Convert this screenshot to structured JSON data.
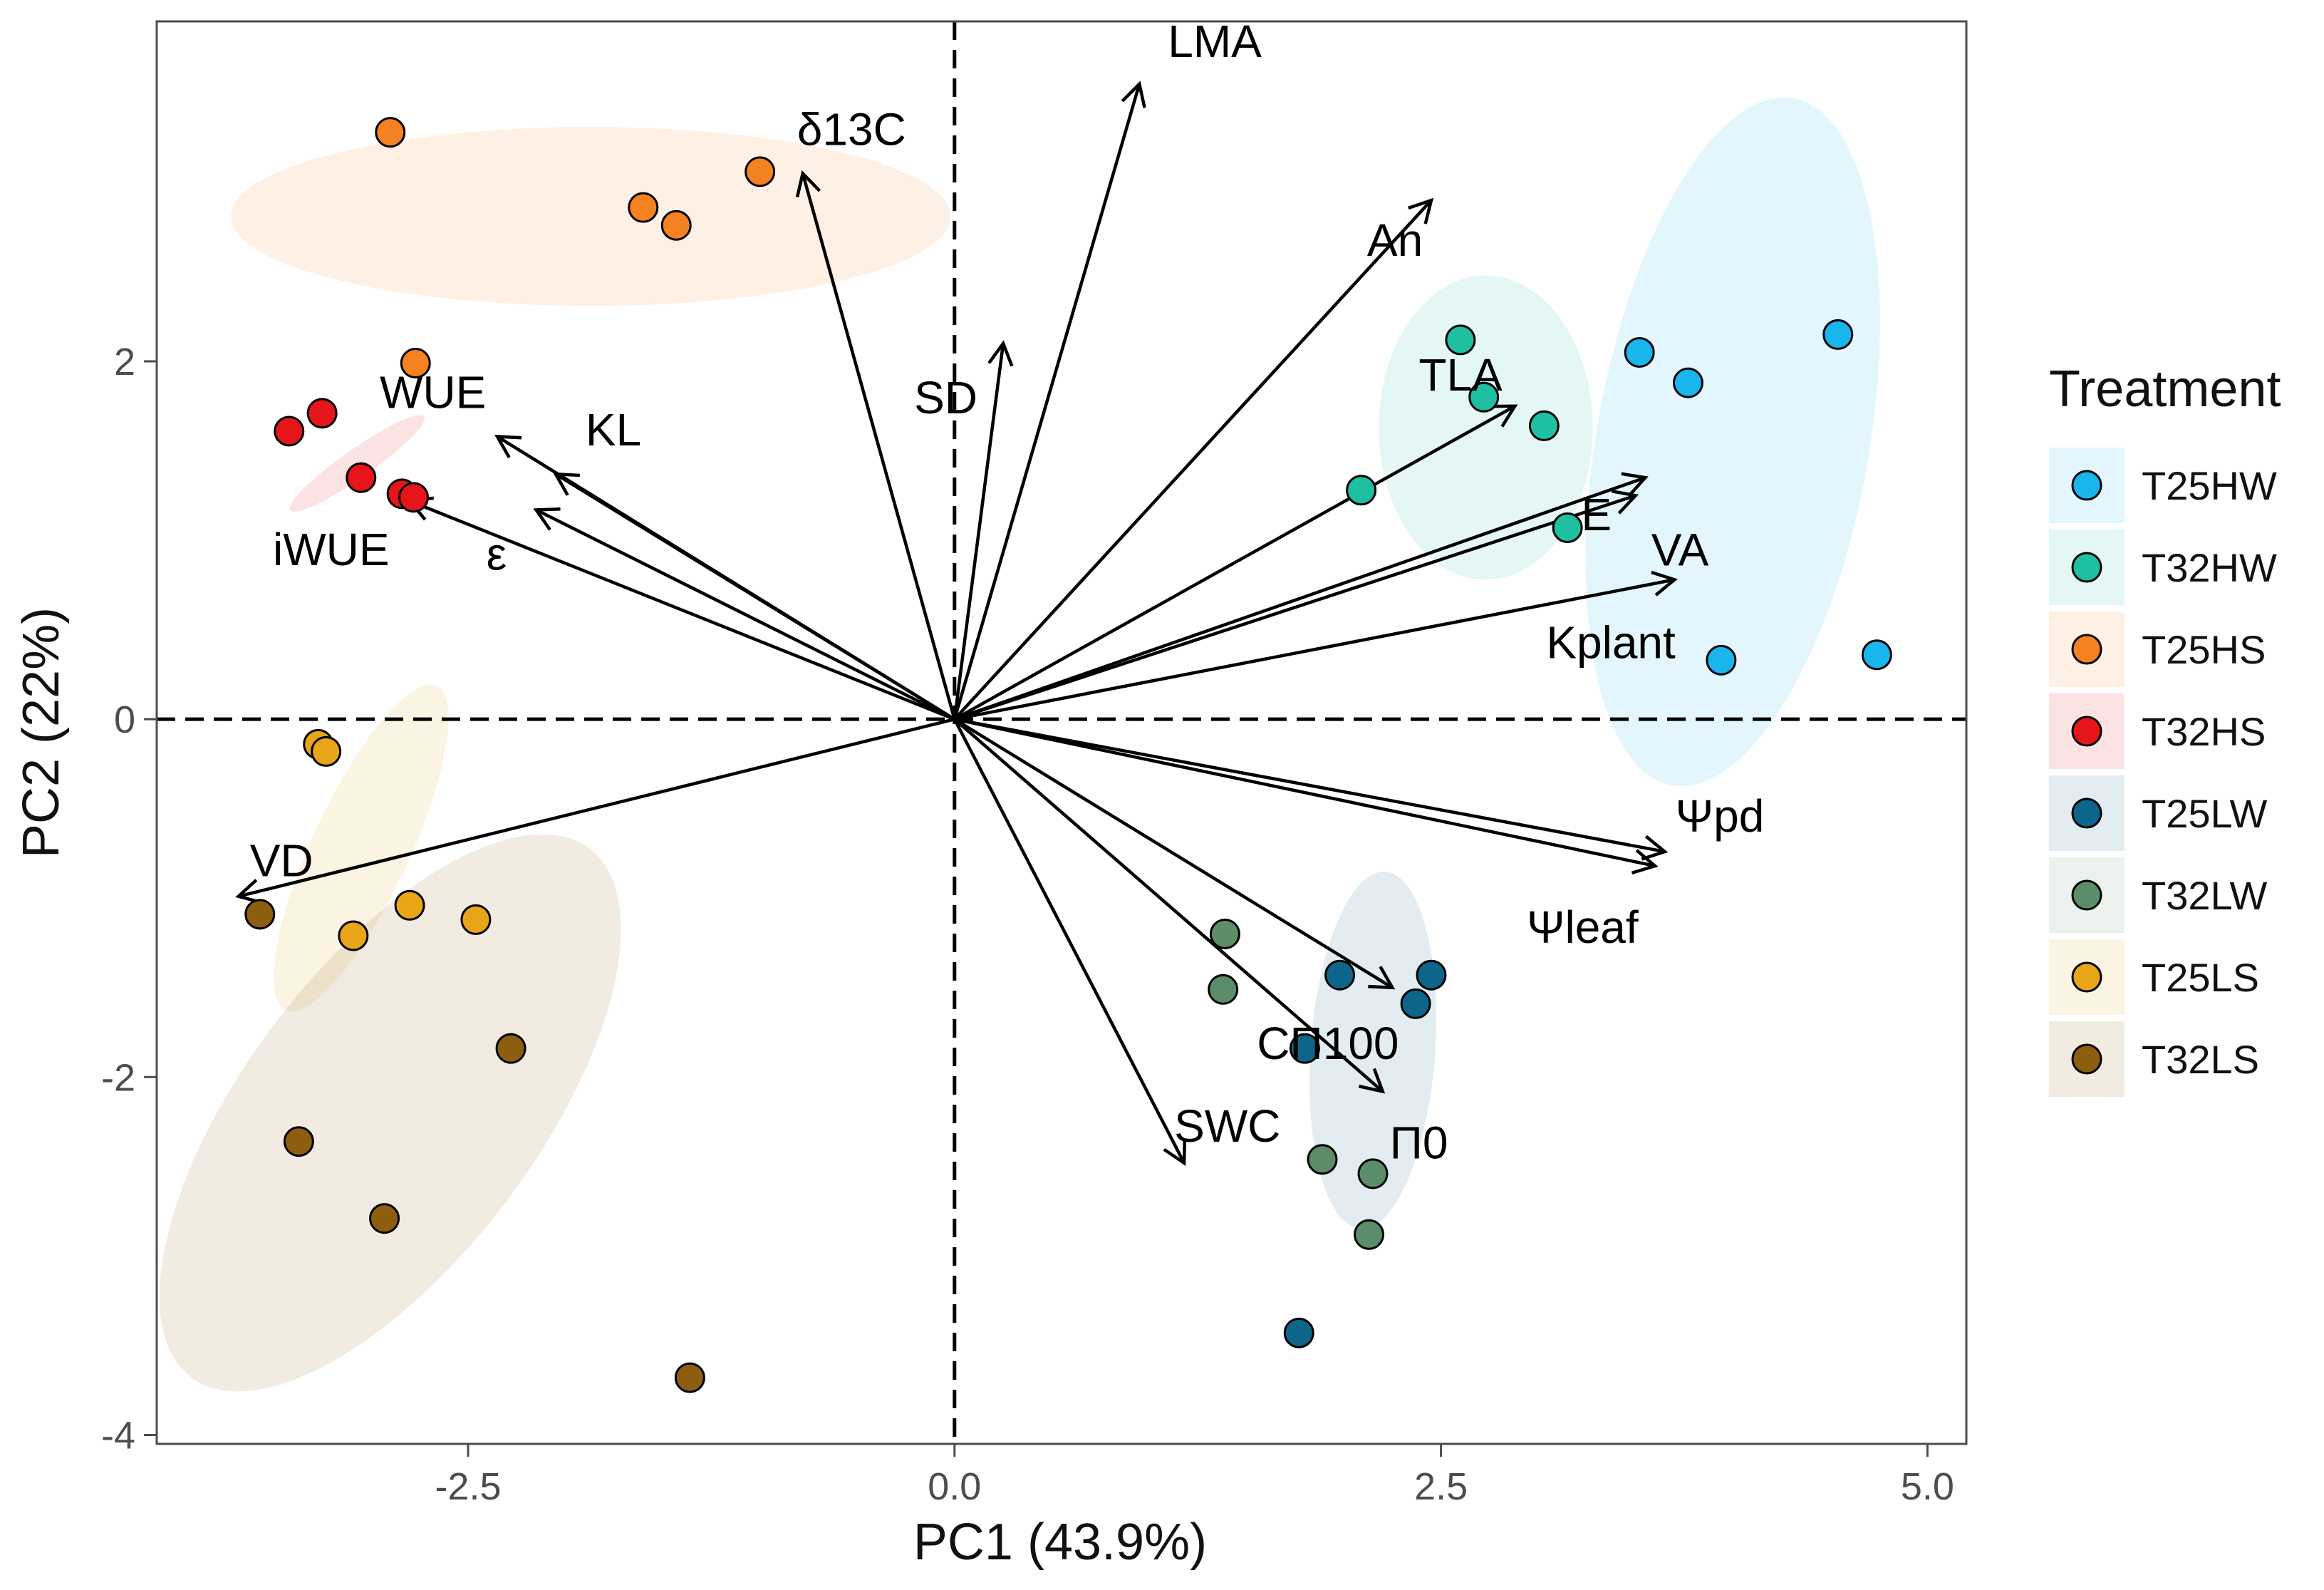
{
  "chart_data": {
    "type": "scatter",
    "subtype": "pca-biplot",
    "title": "",
    "xlabel": "PC1 (43.9%)",
    "ylabel": "PC2 (22%)",
    "xlim": [
      -4.1,
      5.2
    ],
    "ylim": [
      -4.05,
      3.9
    ],
    "x_ticks": [
      -2.5,
      0.0,
      2.5,
      5.0
    ],
    "x_tick_labels": [
      "-2.5",
      "0.0",
      "2.5",
      "5.0"
    ],
    "y_ticks": [
      -4,
      -2,
      0,
      2
    ],
    "y_tick_labels": [
      "-4",
      "-2",
      "0",
      "2"
    ],
    "grid": false,
    "reference_lines": {
      "x": 0,
      "y": 0,
      "style": "dashed"
    },
    "legend": {
      "title": "Treatment",
      "position": "right",
      "entries": [
        "T25HW",
        "T32HW",
        "T25HS",
        "T32HS",
        "T25LW",
        "T32LW",
        "T25LS",
        "T32LS"
      ]
    },
    "series": [
      {
        "name": "T25HW",
        "color": "#19b6ee",
        "points": [
          [
            3.52,
            2.05
          ],
          [
            3.77,
            1.88
          ],
          [
            4.54,
            2.15
          ],
          [
            3.94,
            0.33
          ],
          [
            4.74,
            0.36
          ]
        ],
        "ellipse": {
          "center": [
            4.0,
            1.55
          ],
          "semi_axes": [
            0.7,
            1.95
          ],
          "angle_deg": 80
        }
      },
      {
        "name": "T32HW",
        "color": "#1fbfa2",
        "points": [
          [
            2.6,
            2.12
          ],
          [
            2.72,
            1.8
          ],
          [
            3.03,
            1.64
          ],
          [
            2.09,
            1.28
          ],
          [
            3.15,
            1.07
          ]
        ],
        "ellipse": {
          "center": [
            2.73,
            1.63
          ],
          "semi_axes": [
            0.55,
            0.85
          ],
          "angle_deg": 90
        }
      },
      {
        "name": "T25HS",
        "color": "#f58220",
        "points": [
          [
            -2.9,
            3.28
          ],
          [
            -1.6,
            2.86
          ],
          [
            -1.43,
            2.76
          ],
          [
            -1.0,
            3.06
          ],
          [
            -2.77,
            1.99
          ]
        ],
        "ellipse": {
          "center": [
            -1.87,
            2.81
          ],
          "semi_axes": [
            1.85,
            0.5
          ],
          "angle_deg": 0
        }
      },
      {
        "name": "T32HS",
        "color": "#e51519",
        "points": [
          [
            -3.42,
            1.61
          ],
          [
            -3.25,
            1.71
          ],
          [
            -3.05,
            1.35
          ],
          [
            -2.84,
            1.26
          ],
          [
            -2.78,
            1.24
          ]
        ],
        "ellipse": {
          "center": [
            -3.07,
            1.43
          ],
          "semi_axes": [
            0.42,
            0.08
          ],
          "angle_deg": 35
        }
      },
      {
        "name": "T25LW",
        "color": "#0d6689",
        "points": [
          [
            1.98,
            -1.43
          ],
          [
            2.45,
            -1.43
          ],
          [
            2.37,
            -1.59
          ],
          [
            1.8,
            -1.84
          ],
          [
            1.77,
            -3.43
          ]
        ],
        "ellipse": {
          "center": [
            2.15,
            -1.85
          ],
          "semi_axes": [
            0.32,
            1.0
          ],
          "angle_deg": 86
        }
      },
      {
        "name": "T32LW",
        "color": "#5b8e68",
        "points": [
          [
            1.39,
            -1.2
          ],
          [
            1.38,
            -1.51
          ],
          [
            1.89,
            -2.46
          ],
          [
            2.15,
            -2.54
          ],
          [
            2.13,
            -2.88
          ]
        ],
        "ellipse": null
      },
      {
        "name": "T25LS",
        "color": "#e8a517",
        "points": [
          [
            -3.27,
            -0.14
          ],
          [
            -3.23,
            -0.18
          ],
          [
            -2.8,
            -1.04
          ],
          [
            -2.46,
            -1.12
          ],
          [
            -3.09,
            -1.21
          ]
        ],
        "ellipse": {
          "center": [
            -3.05,
            -0.72
          ],
          "semi_axes": [
            0.25,
            1.0
          ],
          "angle_deg": 65
        }
      },
      {
        "name": "T32LS",
        "color": "#8e5e10",
        "points": [
          [
            -3.57,
            -1.09
          ],
          [
            -2.28,
            -1.84
          ],
          [
            -3.37,
            -2.36
          ],
          [
            -2.93,
            -2.79
          ],
          [
            -1.36,
            -3.68
          ]
        ],
        "ellipse": {
          "center": [
            -2.9,
            -2.2
          ],
          "semi_axes": [
            0.75,
            1.85
          ],
          "angle_deg": 53
        }
      }
    ],
    "loadings": [
      {
        "name": "LMA",
        "x": 0.95,
        "y": 3.55
      },
      {
        "name": "δ13C",
        "x": -0.78,
        "y": 3.05
      },
      {
        "name": "An",
        "x": 2.45,
        "y": 2.9
      },
      {
        "name": "SD",
        "x": 0.25,
        "y": 2.1
      },
      {
        "name": "TLA",
        "x": 2.88,
        "y": 1.75
      },
      {
        "name": "E",
        "x": 3.55,
        "y": 1.35
      },
      {
        "name": "VA",
        "x": 3.5,
        "y": 1.25
      },
      {
        "name": "Kplant",
        "x": 3.7,
        "y": 0.78
      },
      {
        "name": "WUE",
        "x": -2.35,
        "y": 1.58
      },
      {
        "name": "KL",
        "x": -2.05,
        "y": 1.37
      },
      {
        "name": "iWUE",
        "x": -2.8,
        "y": 1.22
      },
      {
        "name": "ε",
        "x": -2.15,
        "y": 1.17
      },
      {
        "name": "VD",
        "x": -3.68,
        "y": -0.99
      },
      {
        "name": "Ψpd",
        "x": 3.65,
        "y": -0.74
      },
      {
        "name": "Ψleaf",
        "x": 3.6,
        "y": -0.82
      },
      {
        "name": "CΠ100",
        "x": 2.25,
        "y": -1.5
      },
      {
        "name": "Π0",
        "x": 2.2,
        "y": -2.08
      },
      {
        "name": "SWC",
        "x": 1.18,
        "y": -2.48
      }
    ]
  }
}
